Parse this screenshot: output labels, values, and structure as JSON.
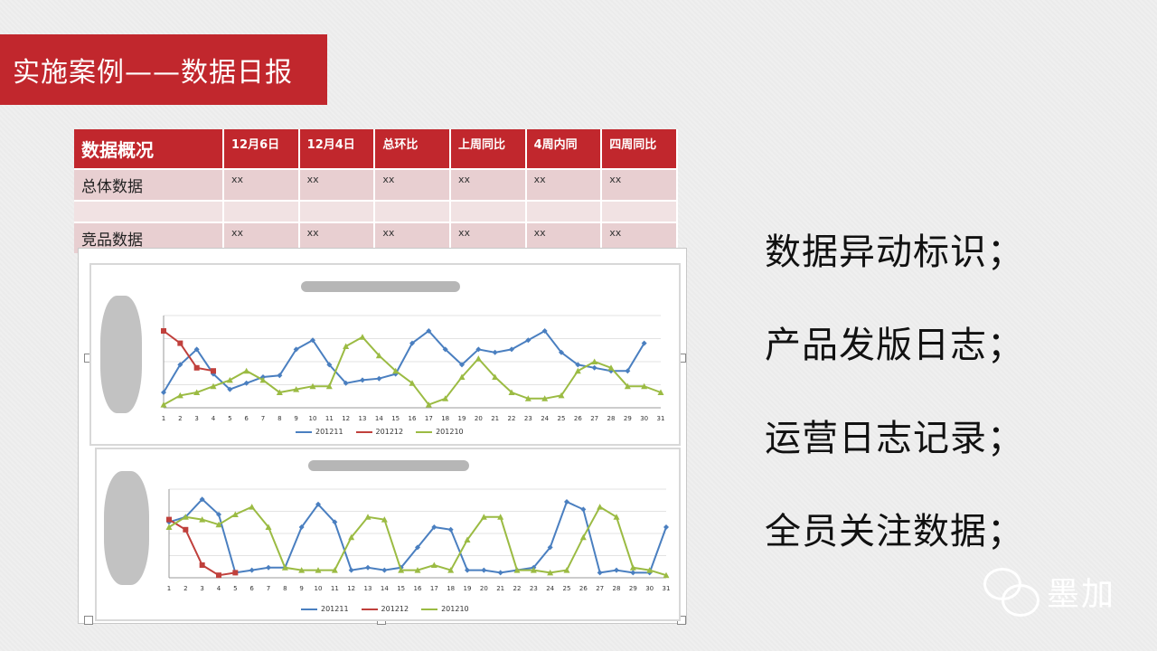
{
  "slide_title": "实施案例——数据日报",
  "table": {
    "headers": [
      "数据概况",
      "12月6日",
      "12月4日",
      "总环比",
      "上周同比",
      "4周内同",
      "四周同比"
    ],
    "rows": [
      {
        "label": "总体数据",
        "cells": [
          "xx",
          "xx",
          "xx",
          "xx",
          "xx",
          "xx"
        ]
      },
      {
        "label": "",
        "cells": [
          "",
          "",
          "",
          "",
          "",
          ""
        ]
      },
      {
        "label": "竞品数据",
        "cells": [
          "xx",
          "xx",
          "xx",
          "xx",
          "xx",
          "xx"
        ]
      }
    ]
  },
  "bullets": [
    "数据异动标识；",
    "产品发版日志；",
    "运营日志记录；",
    "全员关注数据；"
  ],
  "brand": {
    "name": "墨加",
    "icon": "wechat-icon"
  },
  "colors": {
    "accent": "#c1272d",
    "series_blue": "#4a7fc0",
    "series_red": "#c0403c",
    "series_green": "#9bbb43"
  },
  "chart_data": [
    {
      "type": "line",
      "x": [
        1,
        2,
        3,
        4,
        5,
        6,
        7,
        8,
        9,
        10,
        11,
        12,
        13,
        14,
        15,
        16,
        17,
        18,
        19,
        20,
        21,
        22,
        23,
        24,
        25,
        26,
        27,
        28,
        29,
        30,
        31
      ],
      "series": [
        {
          "name": "201211",
          "values": [
            10,
            28,
            38,
            22,
            12,
            16,
            20,
            21,
            38,
            44,
            28,
            16,
            18,
            19,
            22,
            42,
            50,
            38,
            28,
            38,
            36,
            38,
            44,
            50,
            36,
            28,
            26,
            24,
            24,
            42,
            null
          ]
        },
        {
          "name": "201212",
          "values": [
            50,
            42,
            26,
            24,
            null,
            null,
            null,
            null,
            null,
            null,
            null,
            null,
            null,
            null,
            null,
            null,
            null,
            null,
            null,
            null,
            null,
            null,
            null,
            null,
            null,
            null,
            null,
            null,
            null,
            null,
            null
          ]
        },
        {
          "name": "201210",
          "values": [
            2,
            8,
            10,
            14,
            18,
            24,
            18,
            10,
            12,
            14,
            14,
            40,
            46,
            34,
            24,
            16,
            2,
            6,
            20,
            32,
            20,
            10,
            6,
            6,
            8,
            24,
            30,
            26,
            14,
            14,
            10
          ]
        }
      ],
      "ylim": [
        0,
        60
      ]
    },
    {
      "type": "line",
      "x": [
        1,
        2,
        3,
        4,
        5,
        6,
        7,
        8,
        9,
        10,
        11,
        12,
        13,
        14,
        15,
        16,
        17,
        18,
        19,
        20,
        21,
        22,
        23,
        24,
        25,
        26,
        27,
        28,
        29,
        30,
        31
      ],
      "series": [
        {
          "name": "201211",
          "values": [
            44,
            48,
            62,
            50,
            4,
            6,
            8,
            8,
            40,
            58,
            44,
            6,
            8,
            6,
            8,
            24,
            40,
            38,
            6,
            6,
            4,
            6,
            8,
            24,
            60,
            54,
            4,
            6,
            4,
            4,
            40
          ]
        },
        {
          "name": "201212",
          "values": [
            46,
            38,
            10,
            2,
            4,
            null,
            null,
            null,
            null,
            null,
            null,
            null,
            null,
            null,
            null,
            null,
            null,
            null,
            null,
            null,
            null,
            null,
            null,
            null,
            null,
            null,
            null,
            null,
            null,
            null,
            null
          ]
        },
        {
          "name": "201210",
          "values": [
            40,
            48,
            46,
            42,
            50,
            56,
            40,
            8,
            6,
            6,
            6,
            32,
            48,
            46,
            6,
            6,
            10,
            6,
            30,
            48,
            48,
            6,
            6,
            4,
            6,
            32,
            56,
            48,
            8,
            6,
            2
          ]
        }
      ],
      "ylim": [
        0,
        70
      ]
    }
  ]
}
